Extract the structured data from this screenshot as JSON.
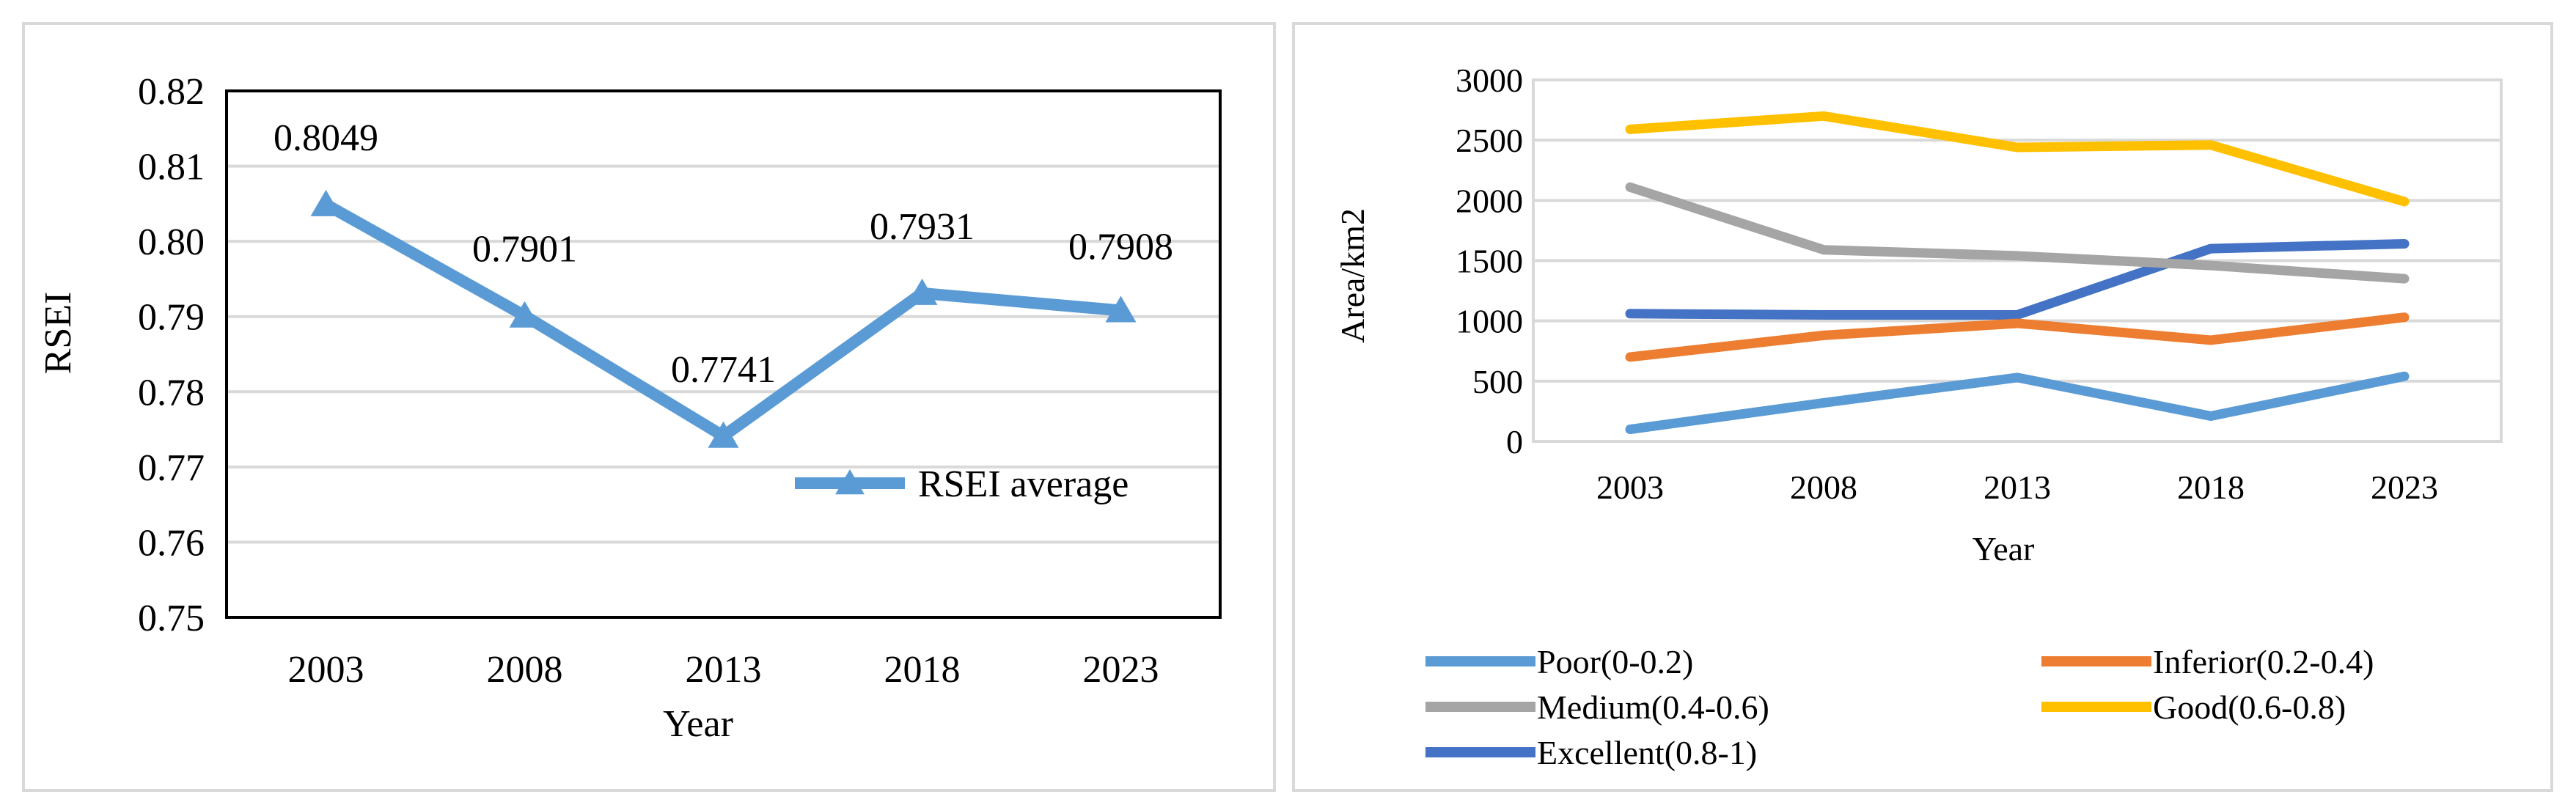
{
  "chart_data": [
    {
      "type": "line",
      "title": "",
      "xlabel": "Year",
      "ylabel": "RSEI",
      "ylim": [
        0.75,
        0.82
      ],
      "yticks": [
        "0.82",
        "0.81",
        "0.80",
        "0.79",
        "0.78",
        "0.77",
        "0.76",
        "0.75"
      ],
      "categories": [
        "2003",
        "2008",
        "2013",
        "2018",
        "2023"
      ],
      "series": [
        {
          "name": "RSEI average",
          "color": "#5b9bd5",
          "marker": "triangle",
          "values": [
            0.8049,
            0.7901,
            0.7741,
            0.7931,
            0.7908
          ],
          "labels": [
            "0.8049",
            "0.7901",
            "0.7741",
            "0.7931",
            "0.7908"
          ]
        }
      ],
      "legend": "inside-right",
      "grid": true
    },
    {
      "type": "line",
      "title": "",
      "xlabel": "Year",
      "ylabel": "Area/km2",
      "ylim": [
        0,
        3000
      ],
      "yticks": [
        "3000",
        "2500",
        "2000",
        "1500",
        "1000",
        "500",
        "0"
      ],
      "categories": [
        "2003",
        "2008",
        "2013",
        "2018",
        "2023"
      ],
      "series": [
        {
          "name": "Poor(0-0.2)",
          "color": "#5b9bd5",
          "values": [
            100,
            320,
            530,
            210,
            540
          ]
        },
        {
          "name": "Inferior(0.2-0.4)",
          "color": "#ed7d31",
          "values": [
            700,
            880,
            980,
            840,
            1030
          ]
        },
        {
          "name": "Medium(0.4-0.6)",
          "color": "#a5a5a5",
          "values": [
            2110,
            1590,
            1540,
            1460,
            1350
          ]
        },
        {
          "name": "Good(0.6-0.8)",
          "color": "#ffc000",
          "values": [
            2590,
            2700,
            2440,
            2460,
            1990
          ]
        },
        {
          "name": "Excellent(0.8-1)",
          "color": "#4472c4",
          "values": [
            1060,
            1050,
            1050,
            1600,
            1640
          ]
        }
      ],
      "legend": "bottom",
      "grid": true
    }
  ]
}
